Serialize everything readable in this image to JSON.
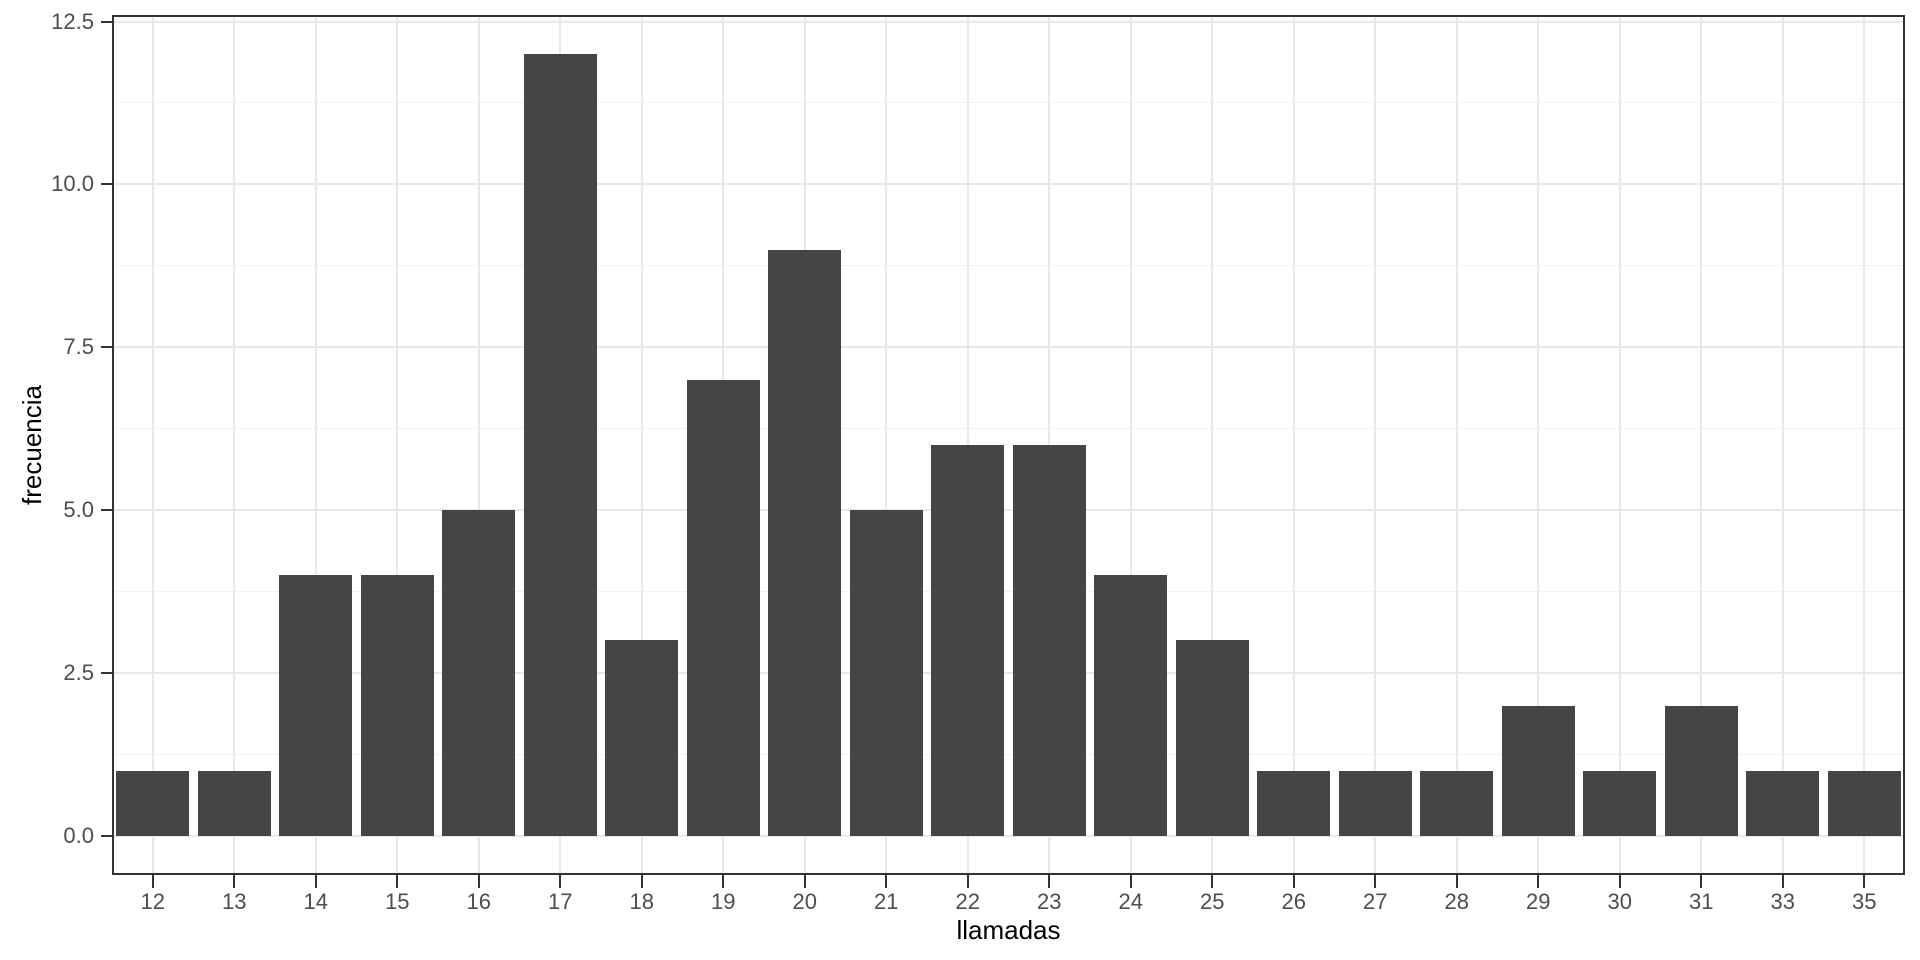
{
  "chart_data": {
    "type": "bar",
    "title": "",
    "xlabel": "llamadas",
    "ylabel": "frecuencia",
    "categories": [
      "12",
      "13",
      "14",
      "15",
      "16",
      "17",
      "18",
      "19",
      "20",
      "21",
      "22",
      "23",
      "24",
      "25",
      "26",
      "27",
      "28",
      "29",
      "30",
      "31",
      "33",
      "35"
    ],
    "values": [
      1,
      1,
      4,
      4,
      5,
      12,
      3,
      7,
      9,
      5,
      6,
      6,
      4,
      3,
      1,
      1,
      1,
      2,
      1,
      2,
      1,
      1
    ],
    "y_tick_labels": [
      "0.0",
      "2.5",
      "5.0",
      "7.5",
      "10.0",
      "12.5"
    ],
    "y_tick_values": [
      0,
      2.5,
      5,
      7.5,
      10,
      12.5
    ],
    "y_minor_values": [
      1.25,
      3.75,
      6.25,
      8.75,
      11.25
    ],
    "ylim": [
      -0.6,
      12.6
    ],
    "bar_width_fraction": 0.9,
    "grid": true,
    "legend": false,
    "colors": {
      "bar_fill": "#454545",
      "panel_border": "#333333",
      "grid_major": "#e8e8e8",
      "grid_minor": "#f2f2f2",
      "tick_mark": "#333333",
      "tick_label": "#4d4d4d",
      "axis_title": "#000000",
      "background": "#ffffff"
    }
  }
}
